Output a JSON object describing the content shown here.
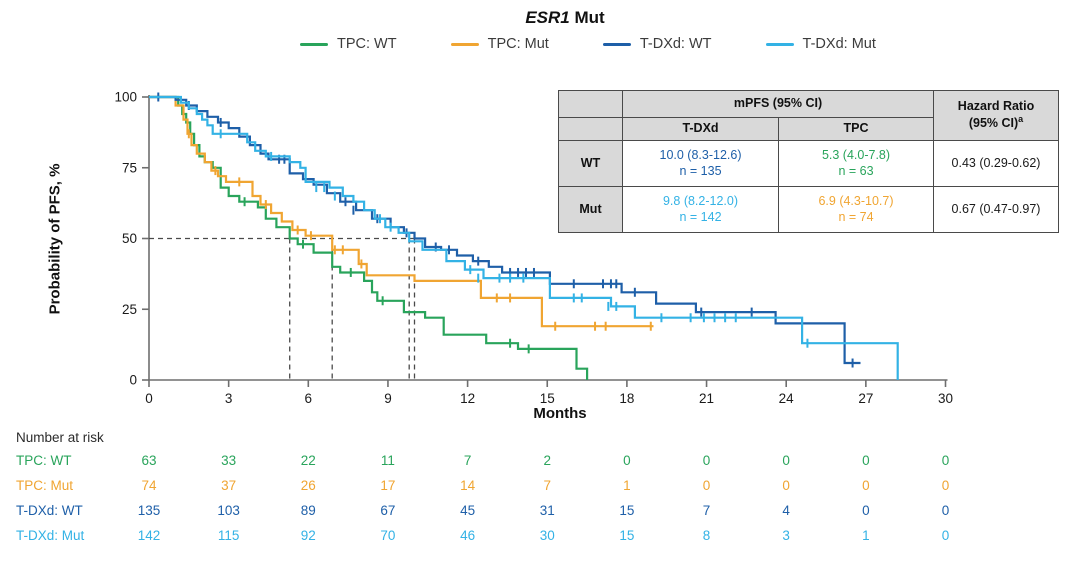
{
  "title": {
    "gene": "ESR1",
    "rest": " Mut"
  },
  "legend": {
    "items": [
      "TPC: WT",
      "TPC: Mut",
      "T-DXd: WT",
      "T-DXd: Mut"
    ]
  },
  "colors": {
    "tpc_wt": "#29a45b",
    "tpc_mut": "#f0a532",
    "tdxd_wt": "#1e5fa8",
    "tdxd_mut": "#33b2e5",
    "axis": "#6e6e6e",
    "dashed": "#4a4a4a",
    "table_header_bg": "#d9d9d9",
    "table_border": "#4a4a4a"
  },
  "chart_data": {
    "type": "line",
    "subtype": "kaplan-meier-step",
    "title": "ESR1 Mut",
    "xlabel": "Months",
    "ylabel": "Probability of PFS, %",
    "xlim": [
      0,
      30
    ],
    "ylim": [
      0,
      100
    ],
    "xticks": [
      0,
      3,
      6,
      9,
      12,
      15,
      18,
      21,
      24,
      27,
      30
    ],
    "yticks": [
      0,
      25,
      50,
      75,
      100
    ],
    "grid": false,
    "legend_position": "top",
    "reference_lines": {
      "horizontal": {
        "y": 50,
        "x_from": 0,
        "x_to": 10.0
      },
      "vertical_x": [
        5.3,
        6.9,
        9.8,
        10.0
      ]
    },
    "series": [
      {
        "name": "TPC: WT",
        "color": "#29a45b",
        "median": 5.3,
        "steps": [
          [
            0,
            100
          ],
          [
            1.1,
            97
          ],
          [
            1.25,
            94
          ],
          [
            1.4,
            91
          ],
          [
            1.55,
            87
          ],
          [
            1.7,
            83
          ],
          [
            1.9,
            79
          ],
          [
            2.1,
            77
          ],
          [
            2.4,
            75
          ],
          [
            2.7,
            68
          ],
          [
            3.0,
            65
          ],
          [
            3.4,
            63
          ],
          [
            4.1,
            61
          ],
          [
            4.4,
            57
          ],
          [
            4.8,
            54
          ],
          [
            5.3,
            50
          ],
          [
            5.6,
            48
          ],
          [
            6.2,
            45
          ],
          [
            6.9,
            40
          ],
          [
            7.2,
            38
          ],
          [
            8.1,
            35
          ],
          [
            8.4,
            31
          ],
          [
            8.6,
            28
          ],
          [
            9.6,
            24
          ],
          [
            10.4,
            22
          ],
          [
            11.1,
            16
          ],
          [
            12.7,
            13
          ],
          [
            13.9,
            11
          ],
          [
            16.1,
            4
          ],
          [
            16.5,
            0
          ]
        ],
        "censors": [
          [
            3.6,
            63
          ],
          [
            5.8,
            48
          ],
          [
            7.6,
            38
          ],
          [
            8.8,
            28
          ],
          [
            13.6,
            13
          ],
          [
            14.3,
            11
          ]
        ]
      },
      {
        "name": "TPC: Mut",
        "color": "#f0a532",
        "median": 6.9,
        "steps": [
          [
            0,
            100
          ],
          [
            1.0,
            97
          ],
          [
            1.3,
            92
          ],
          [
            1.45,
            87
          ],
          [
            1.6,
            83
          ],
          [
            1.8,
            80
          ],
          [
            2.1,
            77
          ],
          [
            2.35,
            74
          ],
          [
            2.6,
            72
          ],
          [
            2.9,
            70
          ],
          [
            3.9,
            65
          ],
          [
            4.2,
            62
          ],
          [
            4.6,
            59
          ],
          [
            5.0,
            56
          ],
          [
            5.4,
            53
          ],
          [
            5.9,
            51
          ],
          [
            6.9,
            46
          ],
          [
            7.9,
            41
          ],
          [
            8.2,
            37
          ],
          [
            10.0,
            35
          ],
          [
            12.5,
            29
          ],
          [
            14.8,
            19
          ],
          [
            19.0,
            19
          ]
        ],
        "censors": [
          [
            1.5,
            87
          ],
          [
            2.5,
            74
          ],
          [
            3.4,
            70
          ],
          [
            4.4,
            62
          ],
          [
            5.6,
            53
          ],
          [
            6.1,
            51
          ],
          [
            7.0,
            46
          ],
          [
            7.3,
            46
          ],
          [
            8.0,
            41
          ],
          [
            13.1,
            29
          ],
          [
            13.6,
            29
          ],
          [
            15.3,
            19
          ],
          [
            16.8,
            19
          ],
          [
            17.2,
            19
          ],
          [
            18.9,
            19
          ]
        ]
      },
      {
        "name": "T-DXd: WT",
        "color": "#1e5fa8",
        "median": 10.0,
        "steps": [
          [
            0,
            100
          ],
          [
            1.0,
            99
          ],
          [
            1.4,
            97
          ],
          [
            1.8,
            95
          ],
          [
            2.2,
            93
          ],
          [
            2.6,
            91
          ],
          [
            3.0,
            89
          ],
          [
            3.4,
            86
          ],
          [
            3.8,
            83
          ],
          [
            4.2,
            80
          ],
          [
            4.5,
            78
          ],
          [
            5.3,
            73
          ],
          [
            5.8,
            71
          ],
          [
            6.2,
            69
          ],
          [
            6.7,
            66
          ],
          [
            7.2,
            63
          ],
          [
            7.8,
            60
          ],
          [
            8.4,
            57
          ],
          [
            9.1,
            54
          ],
          [
            9.6,
            52
          ],
          [
            10.0,
            50
          ],
          [
            10.4,
            47
          ],
          [
            11.0,
            46
          ],
          [
            11.6,
            44
          ],
          [
            12.2,
            42
          ],
          [
            12.8,
            40
          ],
          [
            13.3,
            38
          ],
          [
            15.1,
            34
          ],
          [
            17.8,
            31
          ],
          [
            19.1,
            27
          ],
          [
            20.6,
            24
          ],
          [
            23.6,
            20
          ],
          [
            26.2,
            6
          ],
          [
            26.8,
            6
          ]
        ],
        "censors": [
          [
            0.35,
            100
          ],
          [
            1.5,
            97
          ],
          [
            2.7,
            91
          ],
          [
            4.9,
            78
          ],
          [
            5.1,
            78
          ],
          [
            7.4,
            63
          ],
          [
            7.7,
            60
          ],
          [
            8.6,
            57
          ],
          [
            9.7,
            52
          ],
          [
            10.8,
            47
          ],
          [
            11.3,
            46
          ],
          [
            12.4,
            42
          ],
          [
            13.6,
            38
          ],
          [
            13.9,
            38
          ],
          [
            14.2,
            38
          ],
          [
            14.5,
            38
          ],
          [
            16.0,
            34
          ],
          [
            17.1,
            34
          ],
          [
            17.4,
            34
          ],
          [
            17.6,
            34
          ],
          [
            18.3,
            31
          ],
          [
            20.8,
            24
          ],
          [
            22.7,
            24
          ],
          [
            26.5,
            6
          ]
        ]
      },
      {
        "name": "T-DXd: Mut",
        "color": "#33b2e5",
        "median": 9.8,
        "steps": [
          [
            0,
            100
          ],
          [
            1.2,
            98
          ],
          [
            1.5,
            96
          ],
          [
            1.8,
            94
          ],
          [
            2.0,
            92
          ],
          [
            2.2,
            90
          ],
          [
            2.4,
            87
          ],
          [
            3.7,
            84
          ],
          [
            4.0,
            81
          ],
          [
            4.4,
            79
          ],
          [
            5.3,
            77
          ],
          [
            5.7,
            75
          ],
          [
            5.9,
            70
          ],
          [
            6.8,
            68
          ],
          [
            7.3,
            65
          ],
          [
            7.7,
            63
          ],
          [
            8.1,
            60
          ],
          [
            8.5,
            57
          ],
          [
            8.9,
            54
          ],
          [
            9.4,
            52
          ],
          [
            9.8,
            49
          ],
          [
            10.3,
            46
          ],
          [
            11.2,
            42
          ],
          [
            11.9,
            39
          ],
          [
            12.6,
            36
          ],
          [
            15.1,
            29
          ],
          [
            17.4,
            26
          ],
          [
            18.3,
            22
          ],
          [
            24.6,
            13
          ],
          [
            28.2,
            0
          ]
        ],
        "censors": [
          [
            2.7,
            87
          ],
          [
            4.6,
            79
          ],
          [
            6.3,
            68
          ],
          [
            6.6,
            68
          ],
          [
            7.0,
            65
          ],
          [
            8.7,
            57
          ],
          [
            9.1,
            54
          ],
          [
            12.1,
            39
          ],
          [
            12.4,
            36
          ],
          [
            13.2,
            36
          ],
          [
            13.6,
            36
          ],
          [
            14.1,
            36
          ],
          [
            16.0,
            29
          ],
          [
            16.3,
            29
          ],
          [
            17.3,
            26
          ],
          [
            17.6,
            26
          ],
          [
            19.3,
            22
          ],
          [
            20.4,
            22
          ],
          [
            20.9,
            22
          ],
          [
            21.3,
            22
          ],
          [
            21.7,
            22
          ],
          [
            22.1,
            22
          ],
          [
            24.8,
            13
          ]
        ]
      }
    ]
  },
  "inset_table": {
    "headers": {
      "mpfs": "mPFS (95% CI)",
      "tdxd": "T-DXd",
      "tpc": "TPC",
      "hr_line1": "Hazard Ratio",
      "hr_line2": "(95% CI)",
      "hr_sup": "a"
    },
    "rows": [
      {
        "label": "WT",
        "tdxd_value": "10.0 (8.3-12.6)",
        "tdxd_n": "n = 135",
        "tdxd_color": "#1e5fa8",
        "tpc_value": "5.3 (4.0-7.8)",
        "tpc_n": "n = 63",
        "tpc_color": "#29a45b",
        "hr": "0.43 (0.29-0.62)"
      },
      {
        "label": "Mut",
        "tdxd_value": "9.8 (8.2-12.0)",
        "tdxd_n": "n = 142",
        "tdxd_color": "#33b2e5",
        "tpc_value": "6.9 (4.3-10.7)",
        "tpc_n": "n = 74",
        "tpc_color": "#f0a532",
        "hr": "0.67 (0.47-0.97)"
      }
    ]
  },
  "risk_table": {
    "heading": "Number at risk",
    "timepoints": [
      0,
      3,
      6,
      9,
      12,
      15,
      18,
      21,
      24,
      27,
      30
    ],
    "rows": [
      {
        "label": "TPC: WT",
        "color": "#29a45b",
        "values": [
          63,
          33,
          22,
          11,
          7,
          2,
          0,
          0,
          0,
          0,
          0
        ]
      },
      {
        "label": "TPC: Mut",
        "color": "#f0a532",
        "values": [
          74,
          37,
          26,
          17,
          14,
          7,
          1,
          0,
          0,
          0,
          0
        ]
      },
      {
        "label": "T-DXd: WT",
        "color": "#1e5fa8",
        "values": [
          135,
          103,
          89,
          67,
          45,
          31,
          15,
          7,
          4,
          0,
          0
        ]
      },
      {
        "label": "T-DXd: Mut",
        "color": "#33b2e5",
        "values": [
          142,
          115,
          92,
          70,
          46,
          30,
          15,
          8,
          3,
          1,
          0
        ]
      }
    ]
  }
}
